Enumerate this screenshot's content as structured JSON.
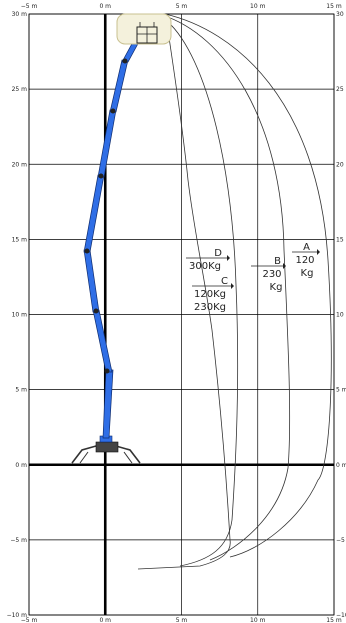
{
  "title": "",
  "x_ticks": [
    {
      "value": -5,
      "label": "−5 m"
    },
    {
      "value": 0,
      "label": "0 m"
    },
    {
      "value": 5,
      "label": "5 m"
    },
    {
      "value": 10,
      "label": "10 m"
    },
    {
      "value": 15,
      "label": "15 m"
    }
  ],
  "y_ticks": [
    {
      "value": 30,
      "label": "30 m"
    },
    {
      "value": 25,
      "label": "25 m"
    },
    {
      "value": 20,
      "label": "20 m"
    },
    {
      "value": 15,
      "label": "15 m"
    },
    {
      "value": 10,
      "label": "10 m"
    },
    {
      "value": 5,
      "label": "5 m"
    },
    {
      "value": 0,
      "label": "0 m"
    },
    {
      "value": -5,
      "label": "−5 m"
    },
    {
      "value": -10,
      "label": "−10 m"
    }
  ],
  "x_range": [
    -5,
    15
  ],
  "y_range": [
    -10,
    30
  ],
  "envelopes": [
    {
      "id": "A",
      "letter": "A",
      "load_lines": [
        "120",
        "Kg"
      ]
    },
    {
      "id": "B",
      "letter": "B",
      "load_lines": [
        "230",
        "Kg"
      ]
    },
    {
      "id": "C",
      "letter": "C",
      "load_lines": [
        "120Kg",
        "230Kg"
      ]
    },
    {
      "id": "D",
      "letter": "D",
      "load_lines": [
        "300Kg"
      ]
    }
  ],
  "colors": {
    "boom": "#2f6ee6",
    "grid": "#000000",
    "envelope": "#333333"
  },
  "icons": {
    "basket": "work-platform-basket-icon",
    "machine": "spider-lift-icon"
  }
}
